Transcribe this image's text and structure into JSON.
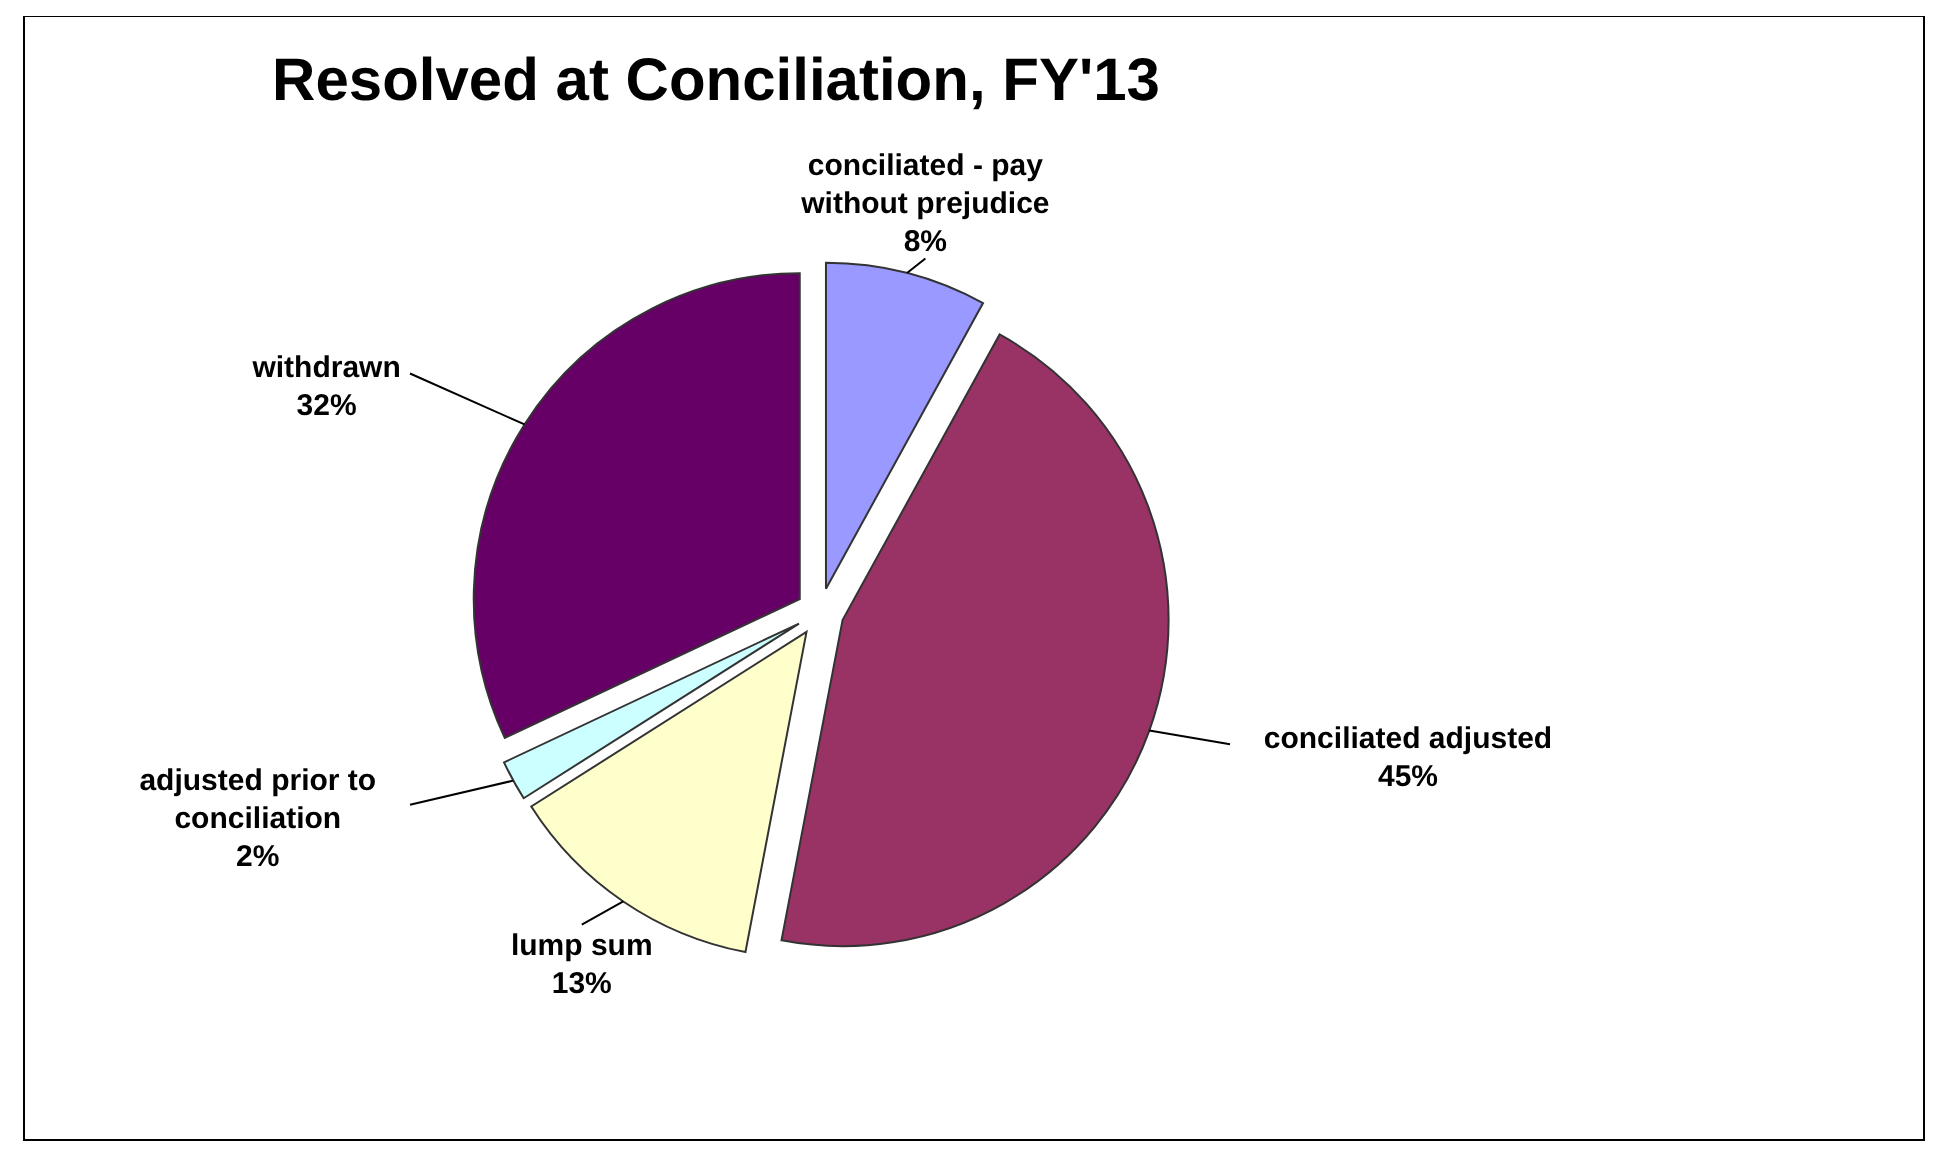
{
  "chart_data": {
    "type": "pie",
    "title": "Resolved at Conciliation, FY'13",
    "categories": [
      "conciliated - pay without prejudice",
      "conciliated adjusted",
      "lump sum",
      "adjusted prior to conciliation",
      "withdrawn"
    ],
    "values": [
      8,
      45,
      13,
      2,
      32
    ],
    "value_labels": [
      "8%",
      "45%",
      "13%",
      "2%",
      "32%"
    ],
    "colors": [
      "#9999ff",
      "#993366",
      "#ffffcc",
      "#ccffff",
      "#660066"
    ]
  }
}
